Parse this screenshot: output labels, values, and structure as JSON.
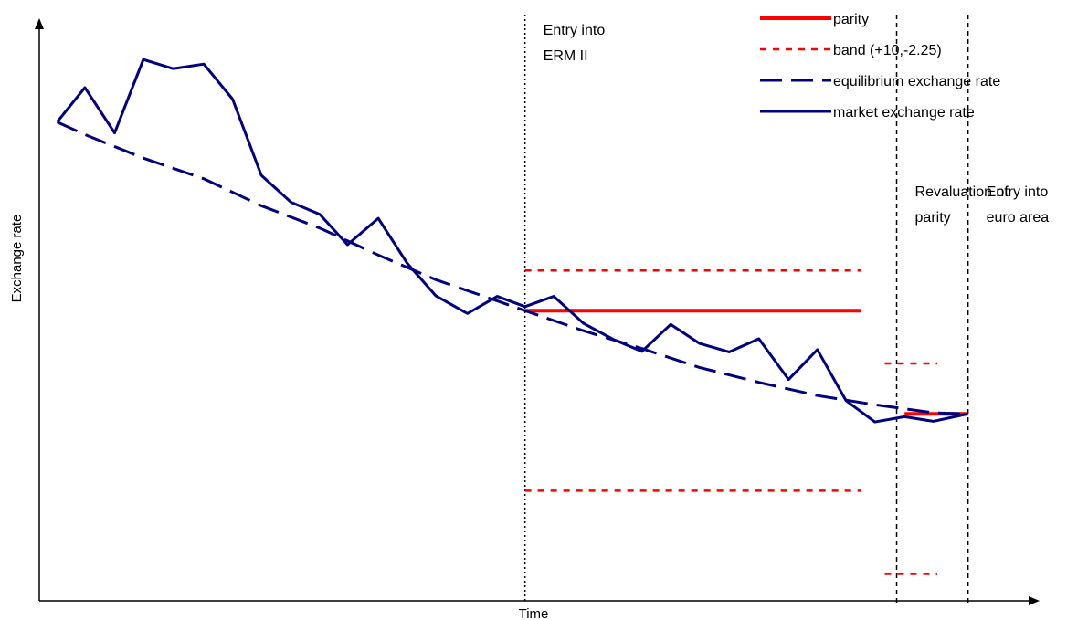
{
  "chart_data": {
    "type": "line",
    "title": "",
    "xlabel": "Time",
    "ylabel": "Exchange rate",
    "grid": false,
    "legend_position": "top-right",
    "colors": {
      "parity": "#ff0000",
      "band": "#ff0000",
      "equilibrium": "#000080",
      "market": "#000080",
      "markers": "#000000"
    },
    "x_range": [
      0,
      100
    ],
    "y_range": [
      0,
      100
    ],
    "legend": [
      {
        "key": "parity",
        "label": "parity",
        "style": "solid"
      },
      {
        "key": "band",
        "label": "band (+10,-2.25)",
        "style": "dotted"
      },
      {
        "key": "equilibrium",
        "label": "equilibrium exchange rate",
        "style": "dashed"
      },
      {
        "key": "market",
        "label": "market exchange rate",
        "style": "solid"
      }
    ],
    "events": [
      {
        "x": 49.0,
        "lines": [
          "Entry into",
          "ERM II"
        ],
        "line_style": "dotted"
      },
      {
        "x": 86.5,
        "lines": [
          "Revaluation of",
          "parity"
        ],
        "line_style": "dashed"
      },
      {
        "x": 93.7,
        "lines": [
          "Entry into",
          "euro area"
        ],
        "line_style": "dashed"
      }
    ],
    "series": [
      {
        "key": "market",
        "name": "market exchange rate",
        "x": [
          1.8,
          4.6,
          7.6,
          10.5,
          13.5,
          16.6,
          19.5,
          22.4,
          25.4,
          28.3,
          31.1,
          34.2,
          37.1,
          40.0,
          43.2,
          46.2,
          49.0,
          51.9,
          54.9,
          57.9,
          60.8,
          63.7,
          66.6,
          69.6,
          72.6,
          75.6,
          78.5,
          81.4,
          84.3,
          87.3,
          90.2,
          93.7
        ],
        "y": [
          83.5,
          89.5,
          81.6,
          94.4,
          92.8,
          93.6,
          87.5,
          74.2,
          69.5,
          67.4,
          62.1,
          66.7,
          58.9,
          53.2,
          50.1,
          53.1,
          51.3,
          53.1,
          48.4,
          45.6,
          43.5,
          48.2,
          44.9,
          43.4,
          45.7,
          38.6,
          43.8,
          34.9,
          31.2,
          32.1,
          31.3,
          32.6
        ]
      },
      {
        "key": "equilibrium",
        "name": "equilibrium exchange rate",
        "x": [
          1.8,
          4.6,
          10.5,
          16.6,
          22.4,
          28.3,
          34.2,
          40.0,
          46.2,
          49.0,
          54.9,
          60.8,
          66.6,
          72.6,
          78.5,
          84.3,
          90.2,
          93.7
        ],
        "y": [
          83.5,
          81.3,
          77.2,
          73.6,
          68.9,
          65.0,
          60.3,
          56.0,
          52.3,
          50.6,
          47.1,
          44.0,
          40.7,
          38.1,
          35.8,
          34.2,
          32.8,
          32.6
        ]
      },
      {
        "key": "parity",
        "name": "parity",
        "segments": [
          {
            "x": [
              49.0,
              82.9
            ],
            "y": [
              50.6,
              50.6
            ]
          },
          {
            "x": [
              87.3,
              93.7
            ],
            "y": [
              32.6,
              32.6
            ]
          }
        ]
      },
      {
        "key": "band",
        "name": "band (+10,-2.25)",
        "segments": [
          {
            "x": [
              49.0,
              82.9
            ],
            "y": [
              57.6,
              57.6
            ]
          },
          {
            "x": [
              49.0,
              82.9
            ],
            "y": [
              19.2,
              19.2
            ]
          },
          {
            "x": [
              85.3,
              90.6
            ],
            "y": [
              41.4,
              41.4
            ]
          },
          {
            "x": [
              85.3,
              90.6
            ],
            "y": [
              4.7,
              4.7
            ]
          }
        ]
      }
    ]
  }
}
